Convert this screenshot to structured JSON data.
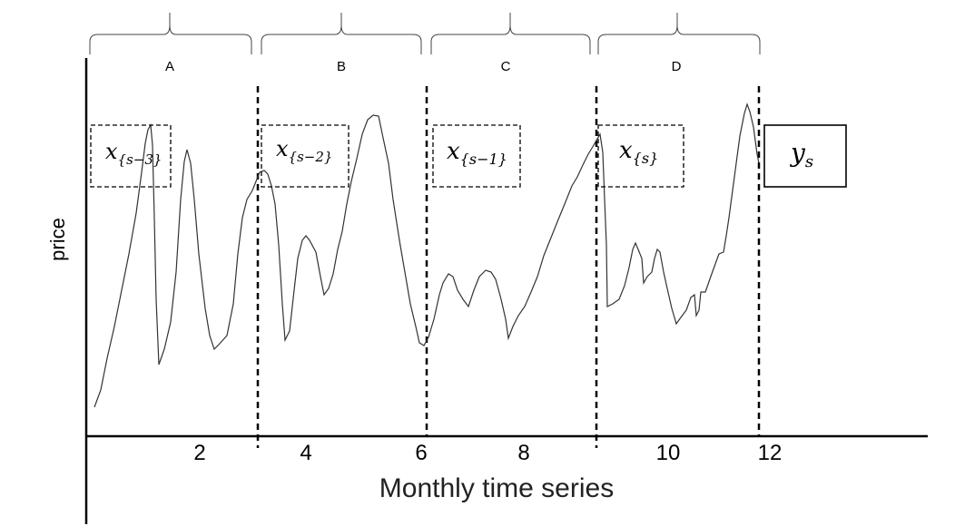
{
  "diagram": {
    "segments": [
      {
        "label": "A",
        "window_main": "x",
        "window_sub": "{s−3}"
      },
      {
        "label": "B",
        "window_main": "x",
        "window_sub": "{s−2}"
      },
      {
        "label": "C",
        "window_main": "x",
        "window_sub": "{s−1}"
      },
      {
        "label": "D",
        "window_main": "x",
        "window_sub": "{s}"
      }
    ],
    "target": {
      "main": "y",
      "sub": "s"
    },
    "x_ticks": [
      "2",
      "4",
      "6",
      "8",
      "10",
      "12"
    ],
    "x_axis_title": "Monthly time series",
    "y_axis_title": "price"
  }
}
